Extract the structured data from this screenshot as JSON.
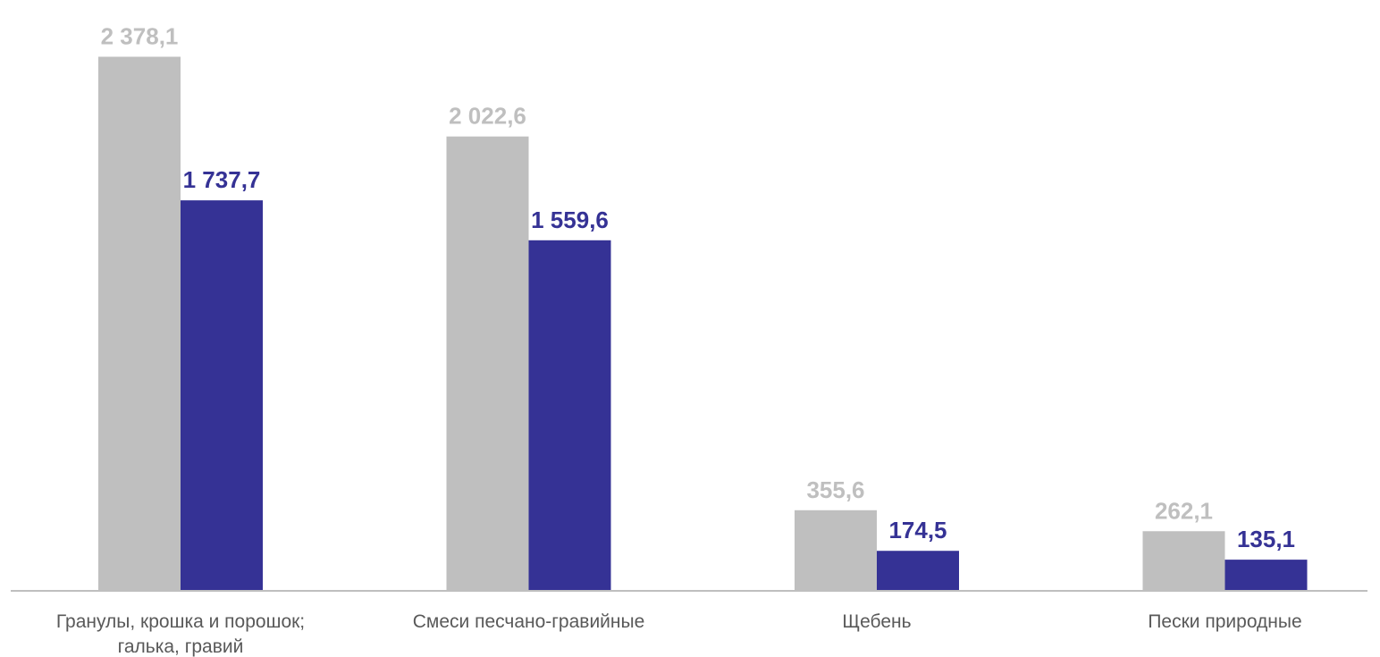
{
  "chart_data": {
    "type": "bar",
    "categories": [
      [
        "Гранулы, крошка и порошок;",
        "галька, гравий"
      ],
      [
        "Смеси песчано-гравийные"
      ],
      [
        "Щебень"
      ],
      [
        "Пески природные"
      ]
    ],
    "series": [
      {
        "values": [
          2378.1,
          2022.6,
          355.6,
          262.1
        ],
        "labels": [
          "2 378,1",
          "2 022,6",
          "355,6",
          "262,1"
        ],
        "color": "#bfbfbf"
      },
      {
        "values": [
          1737.7,
          1559.6,
          174.5,
          135.1
        ],
        "labels": [
          "1 737,7",
          "1 559,6",
          "174,5",
          "135,1"
        ],
        "color": "#353295"
      }
    ],
    "title": "",
    "xlabel": "",
    "ylabel": "",
    "ylim": [
      0,
      2400
    ],
    "grid": false,
    "legend": "none",
    "axis_color": "#bfbfbf",
    "category_label_color": "#595959"
  }
}
